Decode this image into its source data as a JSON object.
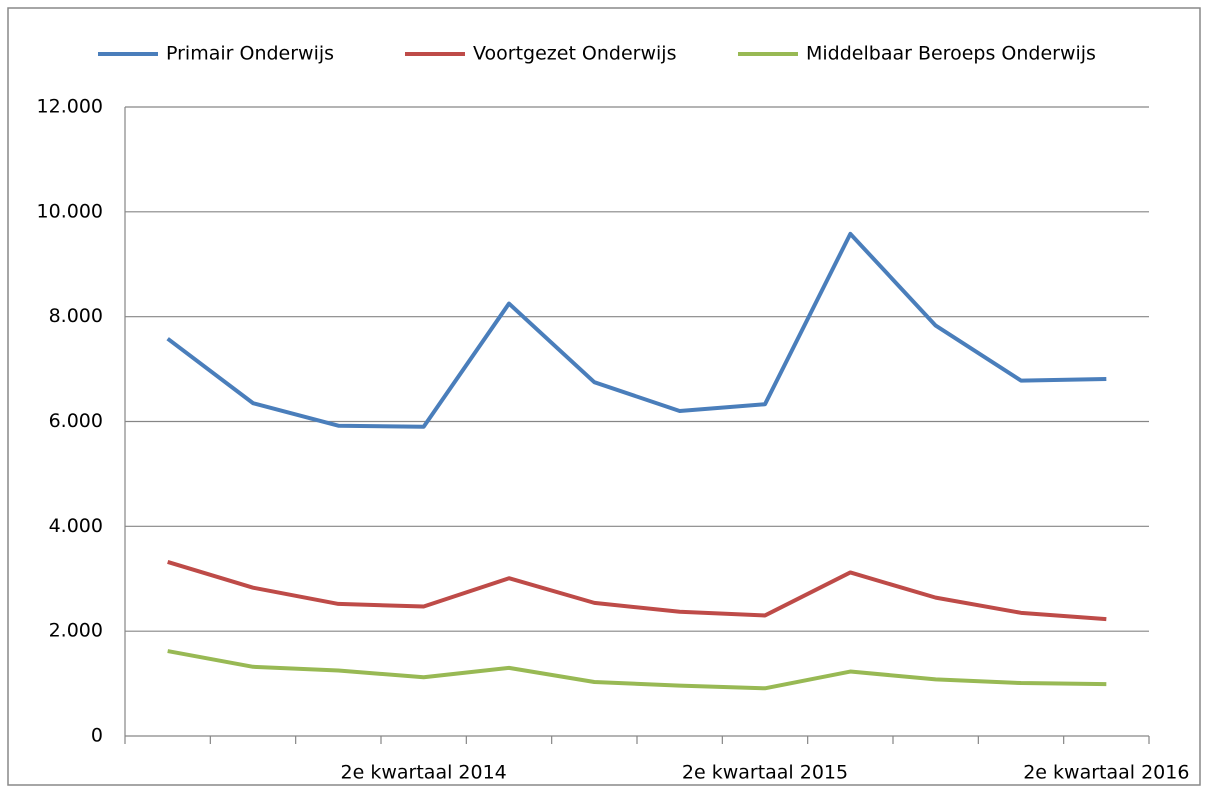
{
  "chart_data": {
    "type": "line",
    "categories": [
      null,
      null,
      null,
      "2e kwartaal 2014",
      null,
      null,
      null,
      "2e kwartaal 2015",
      null,
      null,
      null,
      "2e kwartaal 2016"
    ],
    "series": [
      {
        "name": "Primair Onderwijs",
        "color": "#4a7ebb",
        "values": [
          7580,
          6350,
          5920,
          5900,
          8250,
          6750,
          6200,
          6330,
          9580,
          7830,
          6780,
          6810
        ]
      },
      {
        "name": "Voortgezet Onderwijs",
        "color": "#be4b48",
        "values": [
          3320,
          2830,
          2520,
          2470,
          3010,
          2540,
          2370,
          2300,
          3120,
          2640,
          2350,
          2230
        ]
      },
      {
        "name": "Middelbaar Beroeps Onderwijs",
        "color": "#98b954",
        "values": [
          1620,
          1320,
          1250,
          1120,
          1300,
          1030,
          960,
          910,
          1230,
          1080,
          1010,
          990
        ]
      }
    ],
    "ylim": [
      0,
      12000
    ],
    "yticks": [
      0,
      {
        "value": 2000,
        "label": "2.000"
      },
      {
        "value": 4000,
        "label": "4.000"
      },
      {
        "value": 6000,
        "label": "6.000"
      },
      {
        "value": 8000,
        "label": "8.000"
      },
      {
        "value": 10000,
        "label": "10.000"
      },
      {
        "value": 12000,
        "label": "12.000"
      }
    ],
    "grid": true
  }
}
